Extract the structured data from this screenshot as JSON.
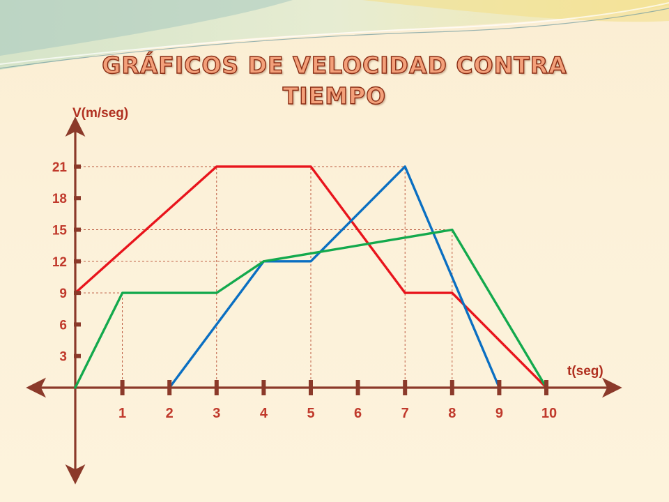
{
  "slide": {
    "title_line1": "GRÁFICOS DE VELOCIDAD CONTRA",
    "title_line2": "TIEMPO"
  },
  "colors": {
    "axis": "#8b3a2a",
    "grid": "#b5492f",
    "tick_label": "#c0392b",
    "axis_label": "#b03020"
  },
  "chart_data": {
    "type": "line",
    "title": "GRÁFICOS DE VELOCIDAD CONTRA TIEMPO",
    "xlabel": "t(seg)",
    "ylabel": "V(m/seg)",
    "xlim": [
      0,
      10
    ],
    "ylim": [
      0,
      21
    ],
    "x_ticks": [
      1,
      2,
      3,
      4,
      5,
      6,
      7,
      8,
      9,
      10
    ],
    "y_ticks": [
      3,
      6,
      9,
      12,
      15,
      18,
      21
    ],
    "grid": "dashed reference lines at the series vertices",
    "guides_h": [
      21,
      15,
      12,
      9
    ],
    "guides_v": [
      {
        "x": 1,
        "y": 9
      },
      {
        "x": 3,
        "y": 21
      },
      {
        "x": 5,
        "y": 21
      },
      {
        "x": 7,
        "y": 21
      },
      {
        "x": 8,
        "y": 15
      }
    ],
    "series": [
      {
        "color": "#e8141c",
        "points": [
          [
            0,
            9
          ],
          [
            3,
            21
          ],
          [
            5,
            21
          ],
          [
            7,
            9
          ],
          [
            8,
            9
          ],
          [
            10,
            0
          ]
        ]
      },
      {
        "color": "#0a6fc2",
        "points": [
          [
            2,
            0
          ],
          [
            4,
            12
          ],
          [
            5,
            12
          ],
          [
            7,
            21
          ],
          [
            9,
            0
          ]
        ]
      },
      {
        "color": "#13a94d",
        "points": [
          [
            0,
            0
          ],
          [
            1,
            9
          ],
          [
            3,
            9
          ],
          [
            4,
            12
          ],
          [
            8,
            15
          ],
          [
            10,
            0
          ]
        ]
      }
    ]
  }
}
